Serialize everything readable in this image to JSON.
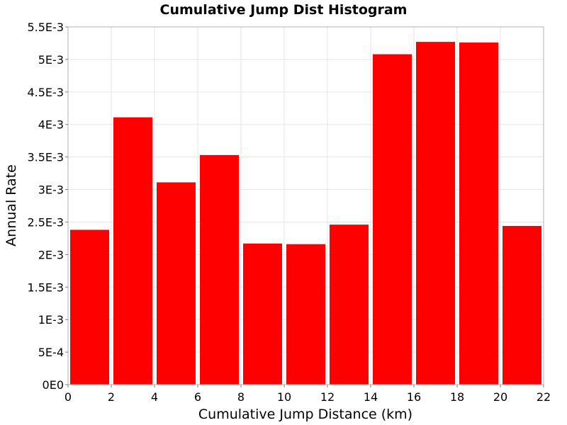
{
  "chart_data": {
    "type": "bar",
    "title": "Cumulative Jump Dist Histogram",
    "xlabel": "Cumulative Jump Distance (km)",
    "ylabel": "Annual Rate",
    "bin_edges": [
      0,
      2,
      4,
      6,
      8,
      10,
      12,
      14,
      16,
      18,
      20,
      22
    ],
    "values": [
      0.00238,
      0.00411,
      0.00311,
      0.00353,
      0.00217,
      0.00216,
      0.00246,
      0.00508,
      0.00527,
      0.00526,
      0.00244
    ],
    "xlim": [
      0,
      22
    ],
    "ylim": [
      0,
      0.0055
    ],
    "xticks": [
      0,
      2,
      4,
      6,
      8,
      10,
      12,
      14,
      16,
      18,
      20,
      22
    ],
    "xtick_labels": [
      "0",
      "2",
      "4",
      "6",
      "8",
      "10",
      "12",
      "14",
      "16",
      "18",
      "20",
      "22"
    ],
    "yticks": [
      0,
      0.0005,
      0.001,
      0.0015,
      0.002,
      0.0025,
      0.003,
      0.0035,
      0.004,
      0.0045,
      0.005,
      0.0055
    ],
    "ytick_labels": [
      "0E0",
      "5E-4",
      "1E-3",
      "1.5E-3",
      "2E-3",
      "2.5E-3",
      "3E-3",
      "3.5E-3",
      "4E-3",
      "4.5E-3",
      "5E-3",
      "5.5E-3"
    ],
    "grid": true,
    "bar_color": "#ff0000"
  }
}
